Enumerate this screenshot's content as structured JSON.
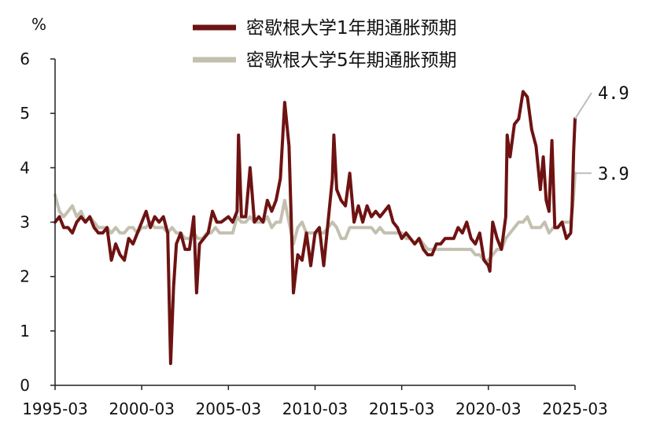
{
  "chart_data": {
    "type": "line",
    "ylabel": "%",
    "ylim": [
      0,
      6
    ],
    "yticks": [
      0,
      1,
      2,
      3,
      4,
      5,
      6
    ],
    "xlim": [
      "1995-03",
      "2025-03"
    ],
    "xticks": [
      "1995-03",
      "2000-03",
      "2005-03",
      "2010-03",
      "2015-03",
      "2020-03",
      "2025-03"
    ],
    "grid": false,
    "legend_position": "top",
    "series": [
      {
        "name": "密歇根大学1年期通胀预期",
        "color": "#6e1212",
        "end_label": "4.9",
        "points": [
          [
            "1995-03",
            3.0
          ],
          [
            "1995-06",
            3.1
          ],
          [
            "1995-09",
            2.9
          ],
          [
            "1995-12",
            2.9
          ],
          [
            "1996-03",
            2.8
          ],
          [
            "1996-06",
            3.0
          ],
          [
            "1996-09",
            3.1
          ],
          [
            "1996-12",
            3.0
          ],
          [
            "1997-03",
            3.1
          ],
          [
            "1997-06",
            2.9
          ],
          [
            "1997-09",
            2.8
          ],
          [
            "1997-12",
            2.8
          ],
          [
            "1998-03",
            2.9
          ],
          [
            "1998-06",
            2.3
          ],
          [
            "1998-09",
            2.6
          ],
          [
            "1998-12",
            2.4
          ],
          [
            "1999-03",
            2.3
          ],
          [
            "1999-06",
            2.7
          ],
          [
            "1999-09",
            2.6
          ],
          [
            "1999-12",
            2.8
          ],
          [
            "2000-03",
            3.0
          ],
          [
            "2000-06",
            3.2
          ],
          [
            "2000-09",
            2.9
          ],
          [
            "2000-12",
            3.1
          ],
          [
            "2001-03",
            3.0
          ],
          [
            "2001-06",
            3.1
          ],
          [
            "2001-09",
            2.8
          ],
          [
            "2001-11",
            0.4
          ],
          [
            "2002-01",
            1.8
          ],
          [
            "2002-03",
            2.6
          ],
          [
            "2002-06",
            2.8
          ],
          [
            "2002-09",
            2.5
          ],
          [
            "2002-12",
            2.5
          ],
          [
            "2003-03",
            3.1
          ],
          [
            "2003-05",
            1.7
          ],
          [
            "2003-07",
            2.6
          ],
          [
            "2003-10",
            2.7
          ],
          [
            "2004-01",
            2.8
          ],
          [
            "2004-04",
            3.2
          ],
          [
            "2004-07",
            3.0
          ],
          [
            "2004-10",
            3.0
          ],
          [
            "2005-03",
            3.1
          ],
          [
            "2005-06",
            3.0
          ],
          [
            "2005-09",
            3.2
          ],
          [
            "2005-10",
            4.6
          ],
          [
            "2005-12",
            3.1
          ],
          [
            "2006-03",
            3.1
          ],
          [
            "2006-06",
            4.0
          ],
          [
            "2006-09",
            3.0
          ],
          [
            "2006-12",
            3.1
          ],
          [
            "2007-03",
            3.0
          ],
          [
            "2007-06",
            3.4
          ],
          [
            "2007-09",
            3.2
          ],
          [
            "2007-12",
            3.4
          ],
          [
            "2008-03",
            3.8
          ],
          [
            "2008-06",
            5.2
          ],
          [
            "2008-09",
            4.4
          ],
          [
            "2008-12",
            1.7
          ],
          [
            "2009-03",
            2.4
          ],
          [
            "2009-06",
            2.3
          ],
          [
            "2009-09",
            2.8
          ],
          [
            "2009-12",
            2.2
          ],
          [
            "2010-03",
            2.8
          ],
          [
            "2010-06",
            2.9
          ],
          [
            "2010-09",
            2.2
          ],
          [
            "2010-12",
            3.0
          ],
          [
            "2011-03",
            3.8
          ],
          [
            "2011-04",
            4.6
          ],
          [
            "2011-06",
            3.6
          ],
          [
            "2011-09",
            3.4
          ],
          [
            "2011-12",
            3.3
          ],
          [
            "2012-03",
            3.9
          ],
          [
            "2012-06",
            3.0
          ],
          [
            "2012-09",
            3.3
          ],
          [
            "2012-12",
            3.0
          ],
          [
            "2013-03",
            3.3
          ],
          [
            "2013-06",
            3.1
          ],
          [
            "2013-09",
            3.2
          ],
          [
            "2013-12",
            3.1
          ],
          [
            "2014-03",
            3.2
          ],
          [
            "2014-06",
            3.3
          ],
          [
            "2014-09",
            3.0
          ],
          [
            "2014-12",
            2.9
          ],
          [
            "2015-03",
            2.7
          ],
          [
            "2015-06",
            2.8
          ],
          [
            "2015-09",
            2.7
          ],
          [
            "2015-12",
            2.6
          ],
          [
            "2016-03",
            2.7
          ],
          [
            "2016-06",
            2.5
          ],
          [
            "2016-09",
            2.4
          ],
          [
            "2016-12",
            2.4
          ],
          [
            "2017-03",
            2.6
          ],
          [
            "2017-06",
            2.6
          ],
          [
            "2017-09",
            2.7
          ],
          [
            "2017-12",
            2.7
          ],
          [
            "2018-03",
            2.7
          ],
          [
            "2018-06",
            2.9
          ],
          [
            "2018-09",
            2.8
          ],
          [
            "2018-12",
            3.0
          ],
          [
            "2019-03",
            2.7
          ],
          [
            "2019-06",
            2.6
          ],
          [
            "2019-09",
            2.8
          ],
          [
            "2019-12",
            2.3
          ],
          [
            "2020-03",
            2.2
          ],
          [
            "2020-04",
            2.1
          ],
          [
            "2020-06",
            3.0
          ],
          [
            "2020-09",
            2.7
          ],
          [
            "2020-12",
            2.5
          ],
          [
            "2021-03",
            3.1
          ],
          [
            "2021-04",
            4.6
          ],
          [
            "2021-06",
            4.2
          ],
          [
            "2021-09",
            4.8
          ],
          [
            "2021-12",
            4.9
          ],
          [
            "2022-03",
            5.4
          ],
          [
            "2022-06",
            5.3
          ],
          [
            "2022-09",
            4.7
          ],
          [
            "2022-12",
            4.4
          ],
          [
            "2023-03",
            3.6
          ],
          [
            "2023-05",
            4.2
          ],
          [
            "2023-07",
            3.4
          ],
          [
            "2023-09",
            3.2
          ],
          [
            "2023-11",
            4.5
          ],
          [
            "2024-01",
            2.9
          ],
          [
            "2024-03",
            2.9
          ],
          [
            "2024-06",
            3.0
          ],
          [
            "2024-09",
            2.7
          ],
          [
            "2024-12",
            2.8
          ],
          [
            "2025-01",
            3.3
          ],
          [
            "2025-02",
            4.3
          ],
          [
            "2025-03",
            4.9
          ]
        ]
      },
      {
        "name": "密歇根大学5年期通胀预期",
        "color": "#c3c0b0",
        "end_label": "3.9",
        "points": [
          [
            "1995-03",
            3.5
          ],
          [
            "1995-06",
            3.2
          ],
          [
            "1995-09",
            3.1
          ],
          [
            "1995-12",
            3.2
          ],
          [
            "1996-03",
            3.3
          ],
          [
            "1996-06",
            3.1
          ],
          [
            "1996-09",
            3.2
          ],
          [
            "1996-12",
            3.0
          ],
          [
            "1997-03",
            3.1
          ],
          [
            "1997-06",
            3.0
          ],
          [
            "1997-09",
            2.9
          ],
          [
            "1997-12",
            2.9
          ],
          [
            "1998-03",
            2.9
          ],
          [
            "1998-06",
            2.8
          ],
          [
            "1998-09",
            2.9
          ],
          [
            "1998-12",
            2.8
          ],
          [
            "1999-03",
            2.8
          ],
          [
            "1999-06",
            2.9
          ],
          [
            "1999-09",
            2.9
          ],
          [
            "1999-12",
            2.8
          ],
          [
            "2000-03",
            2.9
          ],
          [
            "2000-06",
            2.9
          ],
          [
            "2000-09",
            3.0
          ],
          [
            "2000-12",
            2.9
          ],
          [
            "2001-03",
            2.9
          ],
          [
            "2001-06",
            2.9
          ],
          [
            "2001-09",
            2.8
          ],
          [
            "2001-12",
            2.9
          ],
          [
            "2002-03",
            2.8
          ],
          [
            "2002-06",
            2.8
          ],
          [
            "2002-09",
            2.7
          ],
          [
            "2002-12",
            2.7
          ],
          [
            "2003-03",
            2.8
          ],
          [
            "2003-06",
            2.7
          ],
          [
            "2003-09",
            2.7
          ],
          [
            "2003-12",
            2.8
          ],
          [
            "2004-03",
            2.8
          ],
          [
            "2004-06",
            2.9
          ],
          [
            "2004-09",
            2.8
          ],
          [
            "2004-12",
            2.8
          ],
          [
            "2005-03",
            2.8
          ],
          [
            "2005-06",
            2.8
          ],
          [
            "2005-09",
            3.1
          ],
          [
            "2005-12",
            3.0
          ],
          [
            "2006-03",
            3.0
          ],
          [
            "2006-06",
            3.1
          ],
          [
            "2006-09",
            3.0
          ],
          [
            "2006-12",
            3.0
          ],
          [
            "2007-03",
            3.0
          ],
          [
            "2007-06",
            3.1
          ],
          [
            "2007-09",
            2.9
          ],
          [
            "2007-12",
            3.0
          ],
          [
            "2008-03",
            3.0
          ],
          [
            "2008-06",
            3.4
          ],
          [
            "2008-09",
            3.0
          ],
          [
            "2008-12",
            2.6
          ],
          [
            "2009-03",
            2.9
          ],
          [
            "2009-06",
            3.0
          ],
          [
            "2009-09",
            2.8
          ],
          [
            "2009-12",
            2.8
          ],
          [
            "2010-03",
            2.8
          ],
          [
            "2010-06",
            2.8
          ],
          [
            "2010-09",
            2.8
          ],
          [
            "2010-12",
            2.9
          ],
          [
            "2011-03",
            3.0
          ],
          [
            "2011-06",
            2.9
          ],
          [
            "2011-09",
            2.7
          ],
          [
            "2011-12",
            2.7
          ],
          [
            "2012-03",
            2.9
          ],
          [
            "2012-06",
            2.9
          ],
          [
            "2012-09",
            2.9
          ],
          [
            "2012-12",
            2.9
          ],
          [
            "2013-03",
            2.9
          ],
          [
            "2013-06",
            2.9
          ],
          [
            "2013-09",
            2.8
          ],
          [
            "2013-12",
            2.9
          ],
          [
            "2014-03",
            2.8
          ],
          [
            "2014-06",
            2.8
          ],
          [
            "2014-09",
            2.8
          ],
          [
            "2014-12",
            2.8
          ],
          [
            "2015-03",
            2.8
          ],
          [
            "2015-06",
            2.7
          ],
          [
            "2015-09",
            2.7
          ],
          [
            "2015-12",
            2.6
          ],
          [
            "2016-03",
            2.7
          ],
          [
            "2016-06",
            2.6
          ],
          [
            "2016-09",
            2.5
          ],
          [
            "2016-12",
            2.5
          ],
          [
            "2017-03",
            2.5
          ],
          [
            "2017-06",
            2.5
          ],
          [
            "2017-09",
            2.5
          ],
          [
            "2017-12",
            2.5
          ],
          [
            "2018-03",
            2.5
          ],
          [
            "2018-06",
            2.5
          ],
          [
            "2018-09",
            2.5
          ],
          [
            "2018-12",
            2.5
          ],
          [
            "2019-03",
            2.5
          ],
          [
            "2019-06",
            2.4
          ],
          [
            "2019-09",
            2.4
          ],
          [
            "2019-12",
            2.3
          ],
          [
            "2020-03",
            2.3
          ],
          [
            "2020-06",
            2.4
          ],
          [
            "2020-09",
            2.5
          ],
          [
            "2020-12",
            2.5
          ],
          [
            "2021-03",
            2.7
          ],
          [
            "2021-06",
            2.8
          ],
          [
            "2021-09",
            2.9
          ],
          [
            "2021-12",
            3.0
          ],
          [
            "2022-03",
            3.0
          ],
          [
            "2022-06",
            3.1
          ],
          [
            "2022-09",
            2.9
          ],
          [
            "2022-12",
            2.9
          ],
          [
            "2023-03",
            2.9
          ],
          [
            "2023-06",
            3.0
          ],
          [
            "2023-09",
            2.8
          ],
          [
            "2023-12",
            2.9
          ],
          [
            "2024-03",
            2.9
          ],
          [
            "2024-06",
            3.0
          ],
          [
            "2024-09",
            3.0
          ],
          [
            "2024-12",
            3.0
          ],
          [
            "2025-01",
            3.2
          ],
          [
            "2025-02",
            3.5
          ],
          [
            "2025-03",
            3.9
          ]
        ]
      }
    ]
  }
}
